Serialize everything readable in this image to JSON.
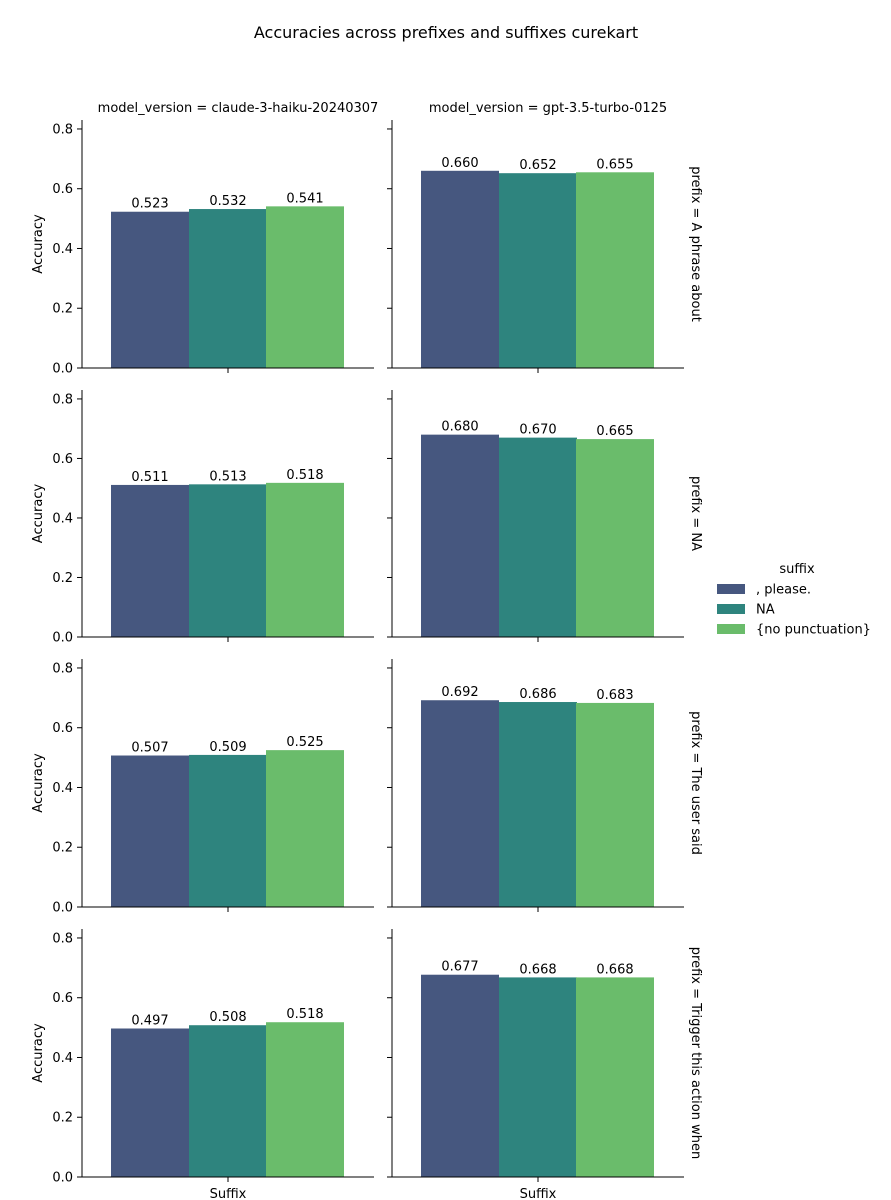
{
  "chart_data": {
    "type": "bar",
    "title": "Accuracies across prefixes and suffixes curekart",
    "ylabel": "Accuracy",
    "xlabel": "Suffix",
    "ylim": [
      0,
      0.83
    ],
    "yticks": [
      0.0,
      0.2,
      0.4,
      0.6,
      0.8
    ],
    "ytick_labels": [
      "0.0",
      "0.2",
      "0.4",
      "0.6",
      "0.8"
    ],
    "grid": false,
    "legend": {
      "title": "suffix",
      "placement": "center-right",
      "entries": [
        {
          "name": ", please.",
          "color": "#46577f"
        },
        {
          "name": "NA",
          "color": "#2e847e"
        },
        {
          "name": "{no punctuation}",
          "color": "#6abc6b"
        }
      ]
    },
    "columns": [
      {
        "title": "model_version = claude-3-haiku-20240307"
      },
      {
        "title": "model_version = gpt-3.5-turbo-0125"
      }
    ],
    "rows": [
      {
        "title": "prefix = A phrase about"
      },
      {
        "title": "prefix = NA"
      },
      {
        "title": "prefix = The user said"
      },
      {
        "title": "prefix = Trigger this action when"
      }
    ],
    "panels": [
      [
        {
          "values": [
            0.523,
            0.532,
            0.541
          ],
          "labels": [
            "0.523",
            "0.532",
            "0.541"
          ]
        },
        {
          "values": [
            0.66,
            0.652,
            0.655
          ],
          "labels": [
            "0.660",
            "0.652",
            "0.655"
          ]
        }
      ],
      [
        {
          "values": [
            0.511,
            0.513,
            0.518
          ],
          "labels": [
            "0.511",
            "0.513",
            "0.518"
          ]
        },
        {
          "values": [
            0.68,
            0.67,
            0.665
          ],
          "labels": [
            "0.680",
            "0.670",
            "0.665"
          ]
        }
      ],
      [
        {
          "values": [
            0.507,
            0.509,
            0.525
          ],
          "labels": [
            "0.507",
            "0.509",
            "0.525"
          ]
        },
        {
          "values": [
            0.692,
            0.686,
            0.683
          ],
          "labels": [
            "0.692",
            "0.686",
            "0.683"
          ]
        }
      ],
      [
        {
          "values": [
            0.497,
            0.508,
            0.518
          ],
          "labels": [
            "0.497",
            "0.508",
            "0.518"
          ]
        },
        {
          "values": [
            0.677,
            0.668,
            0.668
          ],
          "labels": [
            "0.677",
            "0.668",
            "0.668"
          ]
        }
      ]
    ]
  }
}
